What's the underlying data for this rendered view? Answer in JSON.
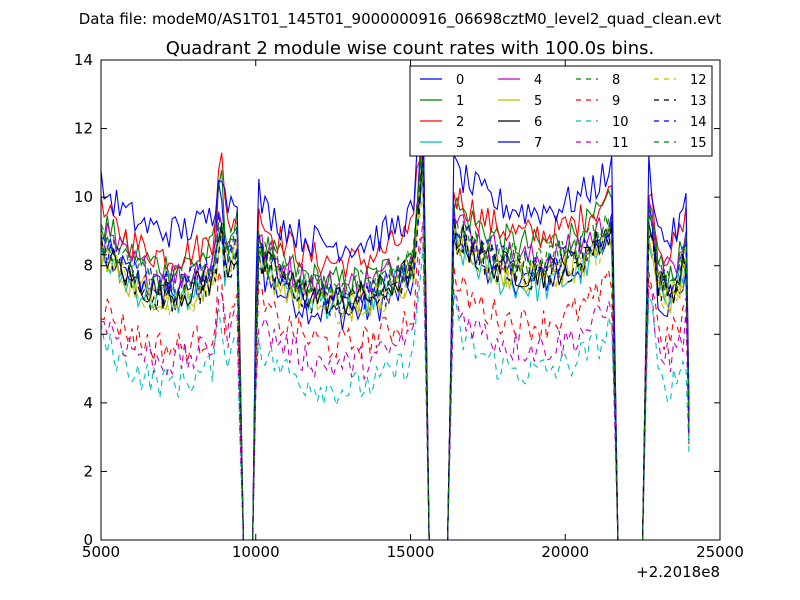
{
  "suptitle": "Data file: modeM0/AS1T01_145T01_9000000916_06698cztM0_level2_quad_clean.evt",
  "chart_data": {
    "type": "line",
    "title": "Quadrant 2 module wise count rates with 100.0s bins.",
    "xlabel": "",
    "ylabel": "",
    "xlim": [
      5000,
      25000
    ],
    "ylim": [
      0,
      14
    ],
    "x_offset_label": "+2.2018e8",
    "x_ticks": [
      5000,
      10000,
      15000,
      20000,
      25000
    ],
    "y_ticks": [
      0,
      2,
      4,
      6,
      8,
      10,
      12,
      14
    ],
    "grid": false,
    "legend_position": "top-right",
    "legend_columns": 4,
    "bin_seconds": 100,
    "gaps": [
      [
        9500,
        10000
      ],
      [
        15500,
        16300
      ],
      [
        21600,
        22600
      ]
    ],
    "series": [
      {
        "name": "0",
        "color": "#0000ff",
        "dash": "solid",
        "levels": [
          7.3,
          6.6,
          7.6,
          6.9
        ],
        "peaks": [
          10.9,
          10.3,
          13.8,
          9.8,
          10.6,
          10.8
        ]
      },
      {
        "name": "1",
        "color": "#008000",
        "dash": "solid",
        "levels": [
          8.0,
          7.5,
          8.6,
          7.8
        ],
        "peaks": [
          11.0,
          9.2,
          12.5,
          9.4,
          10.0,
          10.2
        ]
      },
      {
        "name": "2",
        "color": "#ff0000",
        "dash": "solid",
        "levels": [
          8.3,
          8.1,
          8.9,
          8.4
        ],
        "peaks": [
          11.8,
          10.4,
          13.6,
          10.4,
          10.6,
          11.0
        ]
      },
      {
        "name": "3",
        "color": "#00bfbf",
        "dash": "solid",
        "levels": [
          7.0,
          6.9,
          7.4,
          7.1
        ],
        "peaks": [
          9.2,
          8.5,
          11.5,
          8.8,
          8.8,
          9.5
        ]
      },
      {
        "name": "4",
        "color": "#bf00bf",
        "dash": "solid",
        "levels": [
          7.7,
          7.4,
          8.2,
          7.8
        ],
        "peaks": [
          10.0,
          9.0,
          12.4,
          9.5,
          9.6,
          10.0
        ]
      },
      {
        "name": "5",
        "color": "#bfbf00",
        "dash": "solid",
        "levels": [
          7.1,
          6.8,
          7.7,
          7.1
        ],
        "peaks": [
          9.3,
          8.7,
          11.5,
          8.9,
          9.0,
          9.5
        ]
      },
      {
        "name": "6",
        "color": "#000000",
        "dash": "solid",
        "levels": [
          7.2,
          7.0,
          7.8,
          7.3
        ],
        "peaks": [
          9.4,
          8.7,
          12.0,
          9.0,
          9.3,
          9.6
        ]
      },
      {
        "name": "7",
        "color": "#0000ff",
        "dash": "solid",
        "levels": [
          9.0,
          8.6,
          9.6,
          8.8
        ],
        "peaks": [
          11.4,
          10.6,
          14.0,
          10.2,
          10.4,
          11.4
        ]
      },
      {
        "name": "8",
        "color": "#008000",
        "dash": "dashed",
        "levels": [
          7.6,
          7.3,
          8.1,
          7.6
        ],
        "peaks": [
          9.8,
          9.0,
          12.0,
          9.2,
          9.4,
          9.8
        ]
      },
      {
        "name": "9",
        "color": "#ff0000",
        "dash": "dashed",
        "levels": [
          5.6,
          5.7,
          6.3,
          5.9
        ],
        "peaks": [
          7.8,
          7.6,
          10.0,
          7.9,
          8.0,
          8.4
        ]
      },
      {
        "name": "10",
        "color": "#00bfbf",
        "dash": "dashed",
        "levels": [
          4.6,
          4.4,
          4.9,
          4.5
        ],
        "peaks": [
          7.0,
          6.5,
          9.5,
          7.2,
          7.0,
          7.8
        ]
      },
      {
        "name": "11",
        "color": "#bf00bf",
        "dash": "dashed",
        "levels": [
          5.2,
          5.1,
          5.6,
          5.3
        ],
        "peaks": [
          7.6,
          7.0,
          9.8,
          7.6,
          7.4,
          8.0
        ]
      },
      {
        "name": "12",
        "color": "#bfbf00",
        "dash": "dashed",
        "levels": [
          7.0,
          6.8,
          7.6,
          7.0
        ],
        "peaks": [
          9.2,
          8.6,
          11.5,
          8.8,
          9.0,
          9.4
        ]
      },
      {
        "name": "13",
        "color": "#000000",
        "dash": "dashed",
        "levels": [
          7.1,
          6.9,
          7.7,
          7.2
        ],
        "peaks": [
          9.3,
          8.7,
          11.8,
          8.9,
          9.2,
          9.5
        ]
      },
      {
        "name": "14",
        "color": "#0000ff",
        "dash": "dashed",
        "levels": [
          7.4,
          7.0,
          8.0,
          7.4
        ],
        "peaks": [
          9.6,
          8.9,
          12.0,
          9.1,
          9.3,
          9.7
        ]
      },
      {
        "name": "15",
        "color": "#008000",
        "dash": "dashed",
        "levels": [
          7.5,
          7.2,
          8.1,
          7.5
        ],
        "peaks": [
          9.7,
          9.0,
          12.1,
          9.2,
          9.4,
          9.8
        ]
      }
    ]
  }
}
